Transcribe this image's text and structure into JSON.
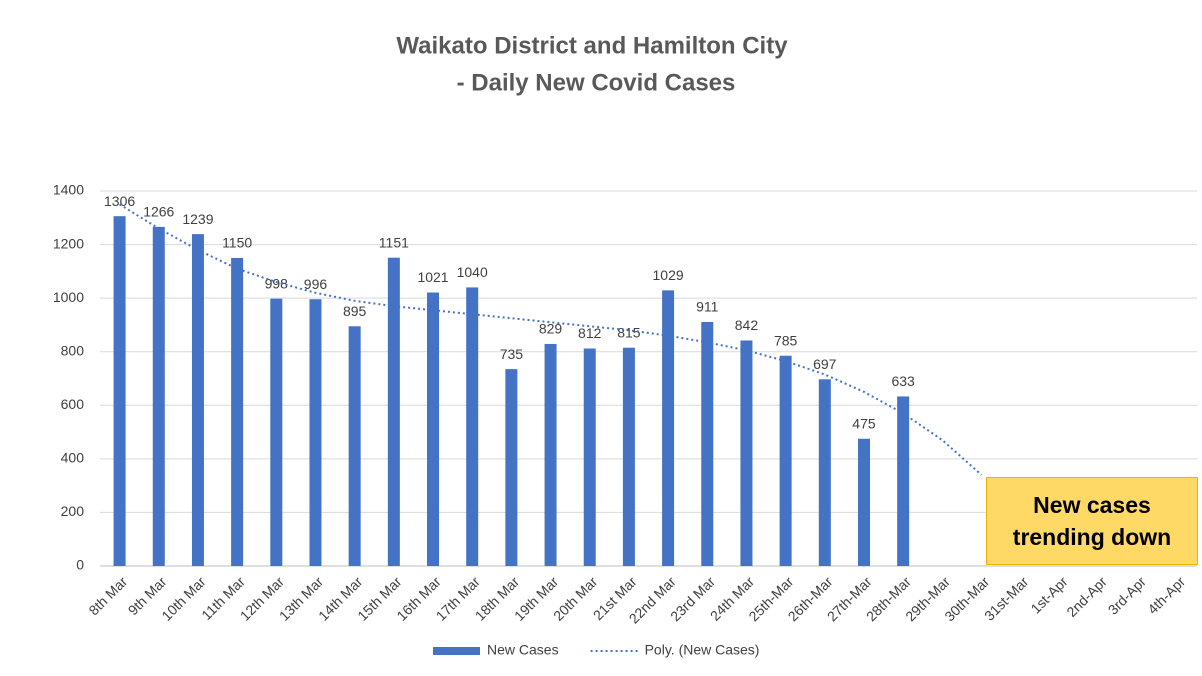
{
  "chart_data": {
    "type": "bar",
    "title": "Waikato District and Hamilton City",
    "subtitle": "- Daily New Covid Cases",
    "annotation": "New cases trending down",
    "categories": [
      "8th Mar",
      "9th Mar",
      "10th Mar",
      "11th Mar",
      "12th Mar",
      "13th Mar",
      "14th Mar",
      "15th Mar",
      "16th Mar",
      "17th Mar",
      "18th Mar",
      "19th Mar",
      "20th Mar",
      "21st Mar",
      "22nd Mar",
      "23rd Mar",
      "24th Mar",
      "25th-Mar",
      "26th-Mar",
      "27th-Mar",
      "28th-Mar",
      "29th-Mar",
      "30th-Mar",
      "31st-Mar",
      "1st-Apr",
      "2nd-Apr",
      "3rd-Apr",
      "4th-Apr"
    ],
    "series": [
      {
        "name": "New Cases",
        "color": "#4472c4",
        "values": [
          1306,
          1266,
          1239,
          1150,
          998,
          996,
          895,
          1151,
          1021,
          1040,
          735,
          829,
          812,
          815,
          1029,
          911,
          842,
          785,
          697,
          475,
          633,
          null,
          null,
          null,
          null,
          null,
          null,
          null
        ]
      },
      {
        "name": "Poly. (New Cases)",
        "color": "#4472c4",
        "type": "line",
        "values": [
          1350,
          1260,
          1180,
          1110,
          1060,
          1020,
          990,
          970,
          955,
          940,
          925,
          910,
          895,
          880,
          860,
          835,
          805,
          765,
          715,
          650,
          570,
          470,
          340,
          null,
          null,
          null,
          null,
          null
        ]
      }
    ],
    "ylim": [
      0,
      1400
    ],
    "yticks": [
      0,
      200,
      400,
      600,
      800,
      1000,
      1200,
      1400
    ],
    "grid": true
  }
}
